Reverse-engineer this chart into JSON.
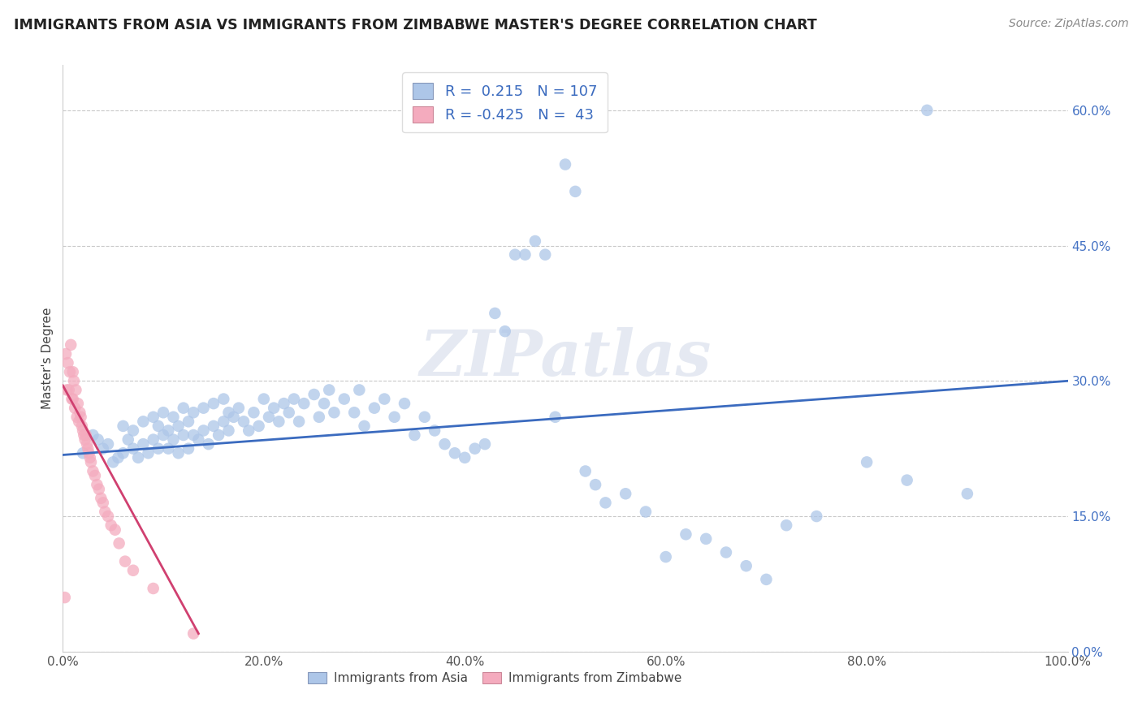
{
  "title": "IMMIGRANTS FROM ASIA VS IMMIGRANTS FROM ZIMBABWE MASTER'S DEGREE CORRELATION CHART",
  "source": "Source: ZipAtlas.com",
  "ylabel": "Master's Degree",
  "xlim": [
    0.0,
    1.0
  ],
  "ylim": [
    0.0,
    0.65
  ],
  "xticks": [
    0.0,
    0.2,
    0.4,
    0.6,
    0.8,
    1.0
  ],
  "xtick_labels": [
    "0.0%",
    "20.0%",
    "40.0%",
    "60.0%",
    "80.0%",
    "100.0%"
  ],
  "yticks": [
    0.0,
    0.15,
    0.3,
    0.45,
    0.6
  ],
  "ytick_labels": [
    "0.0%",
    "15.0%",
    "30.0%",
    "45.0%",
    "60.0%"
  ],
  "legend_r_asia": " 0.215",
  "legend_n_asia": "107",
  "legend_r_zimbabwe": "-0.425",
  "legend_n_zimbabwe": "43",
  "color_asia": "#adc6e8",
  "color_zimbabwe": "#f4abbe",
  "line_color_asia": "#3b6bbf",
  "line_color_zimbabwe": "#d04070",
  "watermark": "ZIPatlas",
  "asia_scatter_x": [
    0.02,
    0.03,
    0.035,
    0.04,
    0.045,
    0.05,
    0.055,
    0.06,
    0.06,
    0.065,
    0.07,
    0.07,
    0.075,
    0.08,
    0.08,
    0.085,
    0.09,
    0.09,
    0.095,
    0.095,
    0.1,
    0.1,
    0.105,
    0.105,
    0.11,
    0.11,
    0.115,
    0.115,
    0.12,
    0.12,
    0.125,
    0.125,
    0.13,
    0.13,
    0.135,
    0.14,
    0.14,
    0.145,
    0.15,
    0.15,
    0.155,
    0.16,
    0.16,
    0.165,
    0.165,
    0.17,
    0.175,
    0.18,
    0.185,
    0.19,
    0.195,
    0.2,
    0.205,
    0.21,
    0.215,
    0.22,
    0.225,
    0.23,
    0.235,
    0.24,
    0.25,
    0.255,
    0.26,
    0.265,
    0.27,
    0.28,
    0.29,
    0.295,
    0.3,
    0.31,
    0.32,
    0.33,
    0.34,
    0.35,
    0.36,
    0.37,
    0.38,
    0.39,
    0.4,
    0.41,
    0.42,
    0.43,
    0.44,
    0.45,
    0.46,
    0.47,
    0.48,
    0.49,
    0.5,
    0.51,
    0.52,
    0.53,
    0.54,
    0.56,
    0.58,
    0.6,
    0.62,
    0.64,
    0.66,
    0.68,
    0.7,
    0.72,
    0.75,
    0.8,
    0.84,
    0.86,
    0.9
  ],
  "asia_scatter_y": [
    0.22,
    0.24,
    0.235,
    0.225,
    0.23,
    0.21,
    0.215,
    0.22,
    0.25,
    0.235,
    0.225,
    0.245,
    0.215,
    0.23,
    0.255,
    0.22,
    0.235,
    0.26,
    0.225,
    0.25,
    0.24,
    0.265,
    0.225,
    0.245,
    0.235,
    0.26,
    0.22,
    0.25,
    0.24,
    0.27,
    0.225,
    0.255,
    0.24,
    0.265,
    0.235,
    0.245,
    0.27,
    0.23,
    0.25,
    0.275,
    0.24,
    0.255,
    0.28,
    0.265,
    0.245,
    0.26,
    0.27,
    0.255,
    0.245,
    0.265,
    0.25,
    0.28,
    0.26,
    0.27,
    0.255,
    0.275,
    0.265,
    0.28,
    0.255,
    0.275,
    0.285,
    0.26,
    0.275,
    0.29,
    0.265,
    0.28,
    0.265,
    0.29,
    0.25,
    0.27,
    0.28,
    0.26,
    0.275,
    0.24,
    0.26,
    0.245,
    0.23,
    0.22,
    0.215,
    0.225,
    0.23,
    0.375,
    0.355,
    0.44,
    0.44,
    0.455,
    0.44,
    0.26,
    0.54,
    0.51,
    0.2,
    0.185,
    0.165,
    0.175,
    0.155,
    0.105,
    0.13,
    0.125,
    0.11,
    0.095,
    0.08,
    0.14,
    0.15,
    0.21,
    0.19,
    0.6,
    0.175
  ],
  "zimbabwe_scatter_x": [
    0.002,
    0.003,
    0.004,
    0.005,
    0.006,
    0.007,
    0.008,
    0.009,
    0.01,
    0.01,
    0.011,
    0.012,
    0.013,
    0.014,
    0.015,
    0.016,
    0.017,
    0.018,
    0.019,
    0.02,
    0.021,
    0.022,
    0.023,
    0.024,
    0.025,
    0.026,
    0.027,
    0.028,
    0.03,
    0.032,
    0.034,
    0.036,
    0.038,
    0.04,
    0.042,
    0.045,
    0.048,
    0.052,
    0.056,
    0.062,
    0.07,
    0.09,
    0.13
  ],
  "zimbabwe_scatter_y": [
    0.06,
    0.33,
    0.29,
    0.32,
    0.29,
    0.31,
    0.34,
    0.28,
    0.31,
    0.28,
    0.3,
    0.27,
    0.29,
    0.26,
    0.275,
    0.255,
    0.265,
    0.26,
    0.25,
    0.245,
    0.24,
    0.235,
    0.24,
    0.23,
    0.225,
    0.22,
    0.215,
    0.21,
    0.2,
    0.195,
    0.185,
    0.18,
    0.17,
    0.165,
    0.155,
    0.15,
    0.14,
    0.135,
    0.12,
    0.1,
    0.09,
    0.07,
    0.02
  ],
  "asia_trend_x": [
    0.0,
    1.0
  ],
  "asia_trend_y_start": 0.218,
  "asia_trend_slope": 0.082,
  "zim_trend_x_start": 0.0,
  "zim_trend_x_end": 0.135,
  "zim_trend_y_start": 0.295,
  "zim_trend_y_end": 0.02
}
